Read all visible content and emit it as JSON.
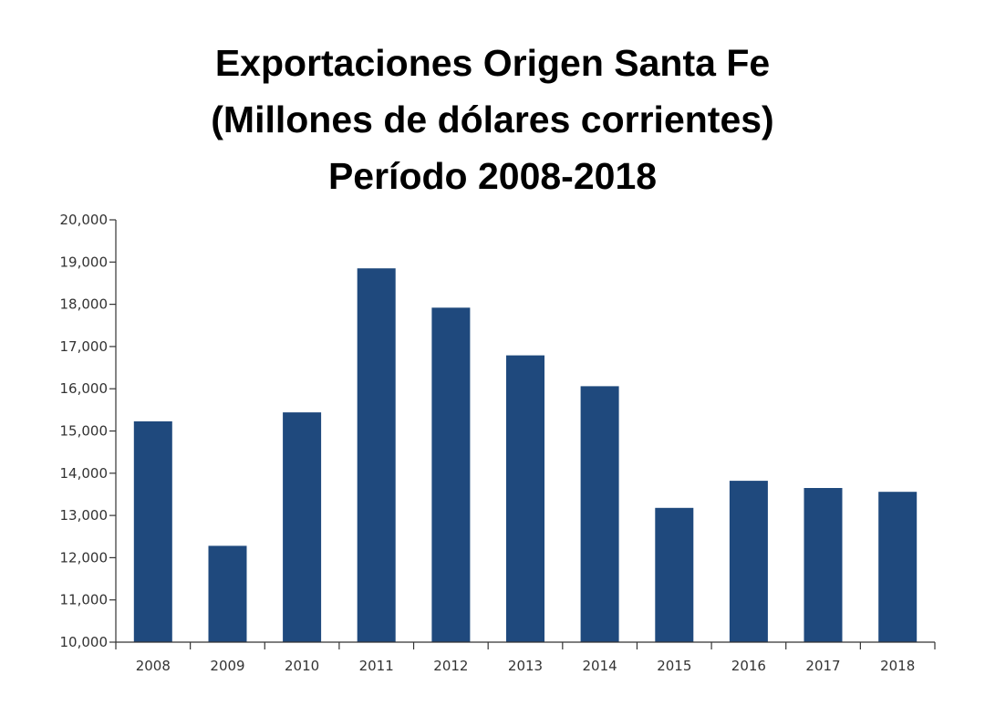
{
  "chart_data": {
    "type": "bar",
    "title_lines": [
      "Exportaciones Origen Santa Fe",
      "(Millones de dólares corrientes)",
      "Período 2008-2018"
    ],
    "categories": [
      "2008",
      "2009",
      "2010",
      "2011",
      "2012",
      "2013",
      "2014",
      "2015",
      "2016",
      "2017",
      "2018"
    ],
    "values": [
      15230,
      12280,
      15440,
      18850,
      17920,
      16790,
      16060,
      13180,
      13820,
      13650,
      13560
    ],
    "ylim": [
      10000,
      20000
    ],
    "yticks": [
      10000,
      11000,
      12000,
      13000,
      14000,
      15000,
      16000,
      17000,
      18000,
      19000,
      20000
    ],
    "ytick_labels": [
      "10,000",
      "11,000",
      "12,000",
      "13,000",
      "14,000",
      "15,000",
      "16,000",
      "17,000",
      "18,000",
      "19,000",
      "20,000"
    ],
    "xlabel": "",
    "ylabel": "",
    "grid": false,
    "bar_color": "#1f497d"
  }
}
